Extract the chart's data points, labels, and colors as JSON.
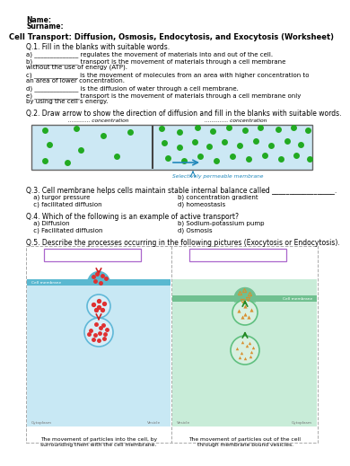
{
  "title": "Cell Transport: Diffusion, Osmosis, Endocytosis, and Exocytosis (Worksheet)",
  "header1": "Name:",
  "header2": "Surname:",
  "q1_title": "Q.1. Fill in the blanks with suitable words.",
  "q1_a": "a) ______________ regulates the movement of materials into and out of the cell.",
  "q1_b1": "b) ______________ transport is the movement of materials through a cell membrane",
  "q1_b2": "without the use of energy (ATP).",
  "q1_c1": "c) ______________ is the movement of molecules from an area with higher concentration to",
  "q1_c2": "an area of lower concentration.",
  "q1_d": "d) ______________ is the diffusion of water through a cell membrane.",
  "q1_e1": "e) ______________ transport is the movement of materials through a cell membrane only",
  "q1_e2": "by using the cell’s energy.",
  "q2_title": "Q.2. Draw arrow to show the direction of diffusion and fill in the blanks with suitable words.",
  "q2_left_label": "............. concentration",
  "q2_right_label": ".............. concentration",
  "q2_membrane_label": "Selectively permeable membrane",
  "q3_title": "Q.3. Cell membrane helps cells maintain stable internal balance called __________________.",
  "q3_a": " a) turgor pressure",
  "q3_b": "b) concentration gradient",
  "q3_c": " c) facilitated diffusion",
  "q3_d": "d) homeostasis",
  "q4_title": "Q.4. Which of the following is an example of active transport?",
  "q4_a": " a) Diffusion",
  "q4_b": "b) Sodium-potassium pump",
  "q4_c": " c) Facilitated diffusion",
  "q4_d": "d) Osmosis",
  "q5_title": "Q.5. Describe the processes occurring in the following pictures (Exocytosis or Endocytosis).",
  "q5_left_cap1": "The movement of particles into the cell, by",
  "q5_left_cap2": "surrounding them with the cell membrane.",
  "q5_right_cap1": "The movement of particles out of the cell",
  "q5_right_cap2": "through membrane bound vesicles.",
  "cytoplasm_label": "Cytoplasm",
  "vesicle_label": "Vesicle",
  "cell_membrane_label": "Cell membrane",
  "bg": "#ffffff",
  "cell_bg_left": "#c8e8f4",
  "cell_bg_right": "#c8ecd8",
  "mem_cyan": "#5ab8d0",
  "mem_green": "#70c090",
  "dot_green": "#22aa22",
  "dot_red": "#e03030",
  "dot_orange": "#d89030",
  "arrow_red": "#cc2222",
  "arrow_green": "#228822",
  "arrow_orange": "#e08800",
  "box_bg": "#cce8f4",
  "box_border": "#666666",
  "mem_line_color": "#444444",
  "mem_label_color": "#2288bb",
  "q5_border": "#aaaaaa",
  "answer_box_color": "#aa66cc",
  "vesicle_left_fill": "#d8eef8",
  "vesicle_right_fill": "#d8f0e0",
  "vesicle_left_edge": "#60b8d8",
  "vesicle_right_edge": "#60c080"
}
